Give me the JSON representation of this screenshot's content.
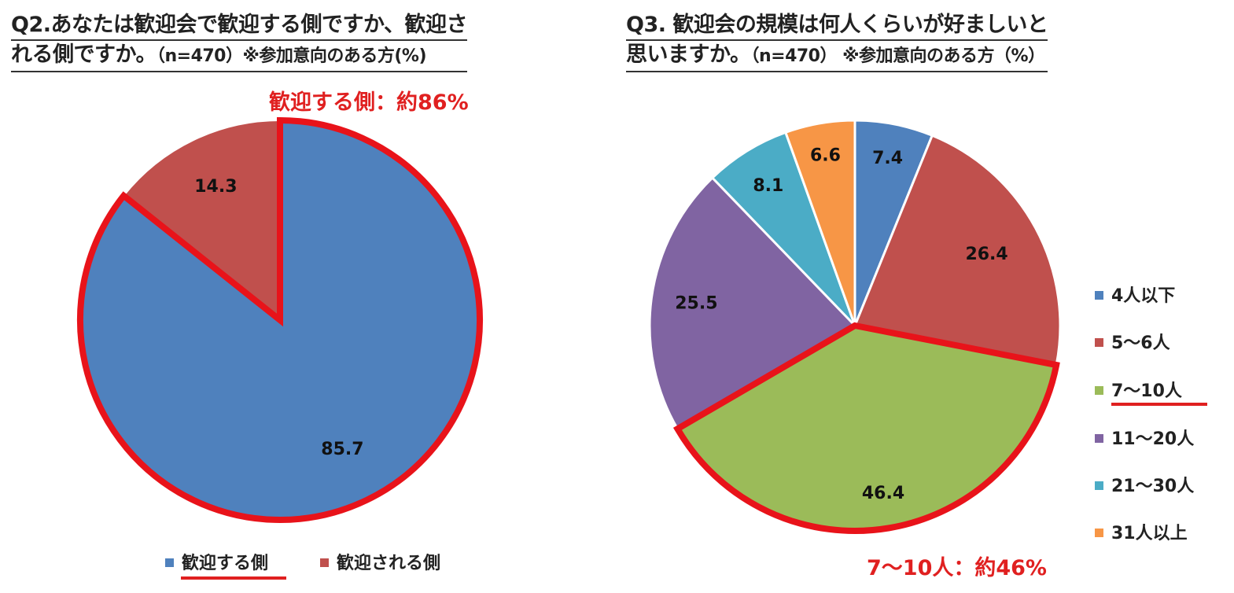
{
  "colors": {
    "blue": "#4f81bd",
    "red": "#c0504d",
    "green": "#9bbb59",
    "purple": "#8064a2",
    "teal": "#4bacc6",
    "orange": "#f79646",
    "highlight": "#e8131a"
  },
  "q2": {
    "title_line1": "Q2.あなたは歓迎会で歓迎する側ですか、歓迎さ",
    "title_line2_main": "れる側ですか。",
    "title_line2_sub": "（n=470）※参加意向のある方(%)",
    "callout": "歓迎する側：約86%",
    "legend": [
      "歓迎する側",
      "歓迎される側"
    ]
  },
  "q3": {
    "title_line1": "Q3. 歓迎会の規模は何人くらいが好ましいと",
    "title_line2_main": "思いますか。",
    "title_line2_sub": "（n=470） ※参加意向のある方（%）",
    "callout": "7〜10人：約46%",
    "legend": [
      "4人以下",
      "5〜6人",
      "7〜10人",
      "11〜20人",
      "21〜30人",
      "31人以上"
    ]
  },
  "chart_data": [
    {
      "type": "pie",
      "title": "Q2.あなたは歓迎会で歓迎する側ですか、歓迎される側ですか。（n=470）※参加意向のある方(%)",
      "categories": [
        "歓迎する側",
        "歓迎される側"
      ],
      "values": [
        85.7,
        14.3
      ],
      "data_labels": [
        "85.7",
        "14.3"
      ],
      "colors": [
        "#4f81bd",
        "#c0504d"
      ],
      "highlighted": "歓迎する側",
      "start_angle": "12 o'clock, clockwise",
      "legend_position": "bottom"
    },
    {
      "type": "pie",
      "title": "Q3. 歓迎会の規模は何人くらいが好ましいと思いますか。（n=470） ※参加意向のある方（%）",
      "categories": [
        "4人以下",
        "5〜6人",
        "7〜10人",
        "11〜20人",
        "21〜30人",
        "31人以上"
      ],
      "values": [
        7.4,
        26.4,
        46.4,
        25.5,
        8.1,
        6.6
      ],
      "data_labels": [
        "7.4",
        "26.4",
        "46.4",
        "25.5",
        "8.1",
        "6.6"
      ],
      "colors": [
        "#4f81bd",
        "#c0504d",
        "#9bbb59",
        "#8064a2",
        "#4bacc6",
        "#f79646"
      ],
      "highlighted": "7〜10人",
      "start_angle": "12 o'clock, clockwise",
      "legend_position": "right"
    }
  ]
}
